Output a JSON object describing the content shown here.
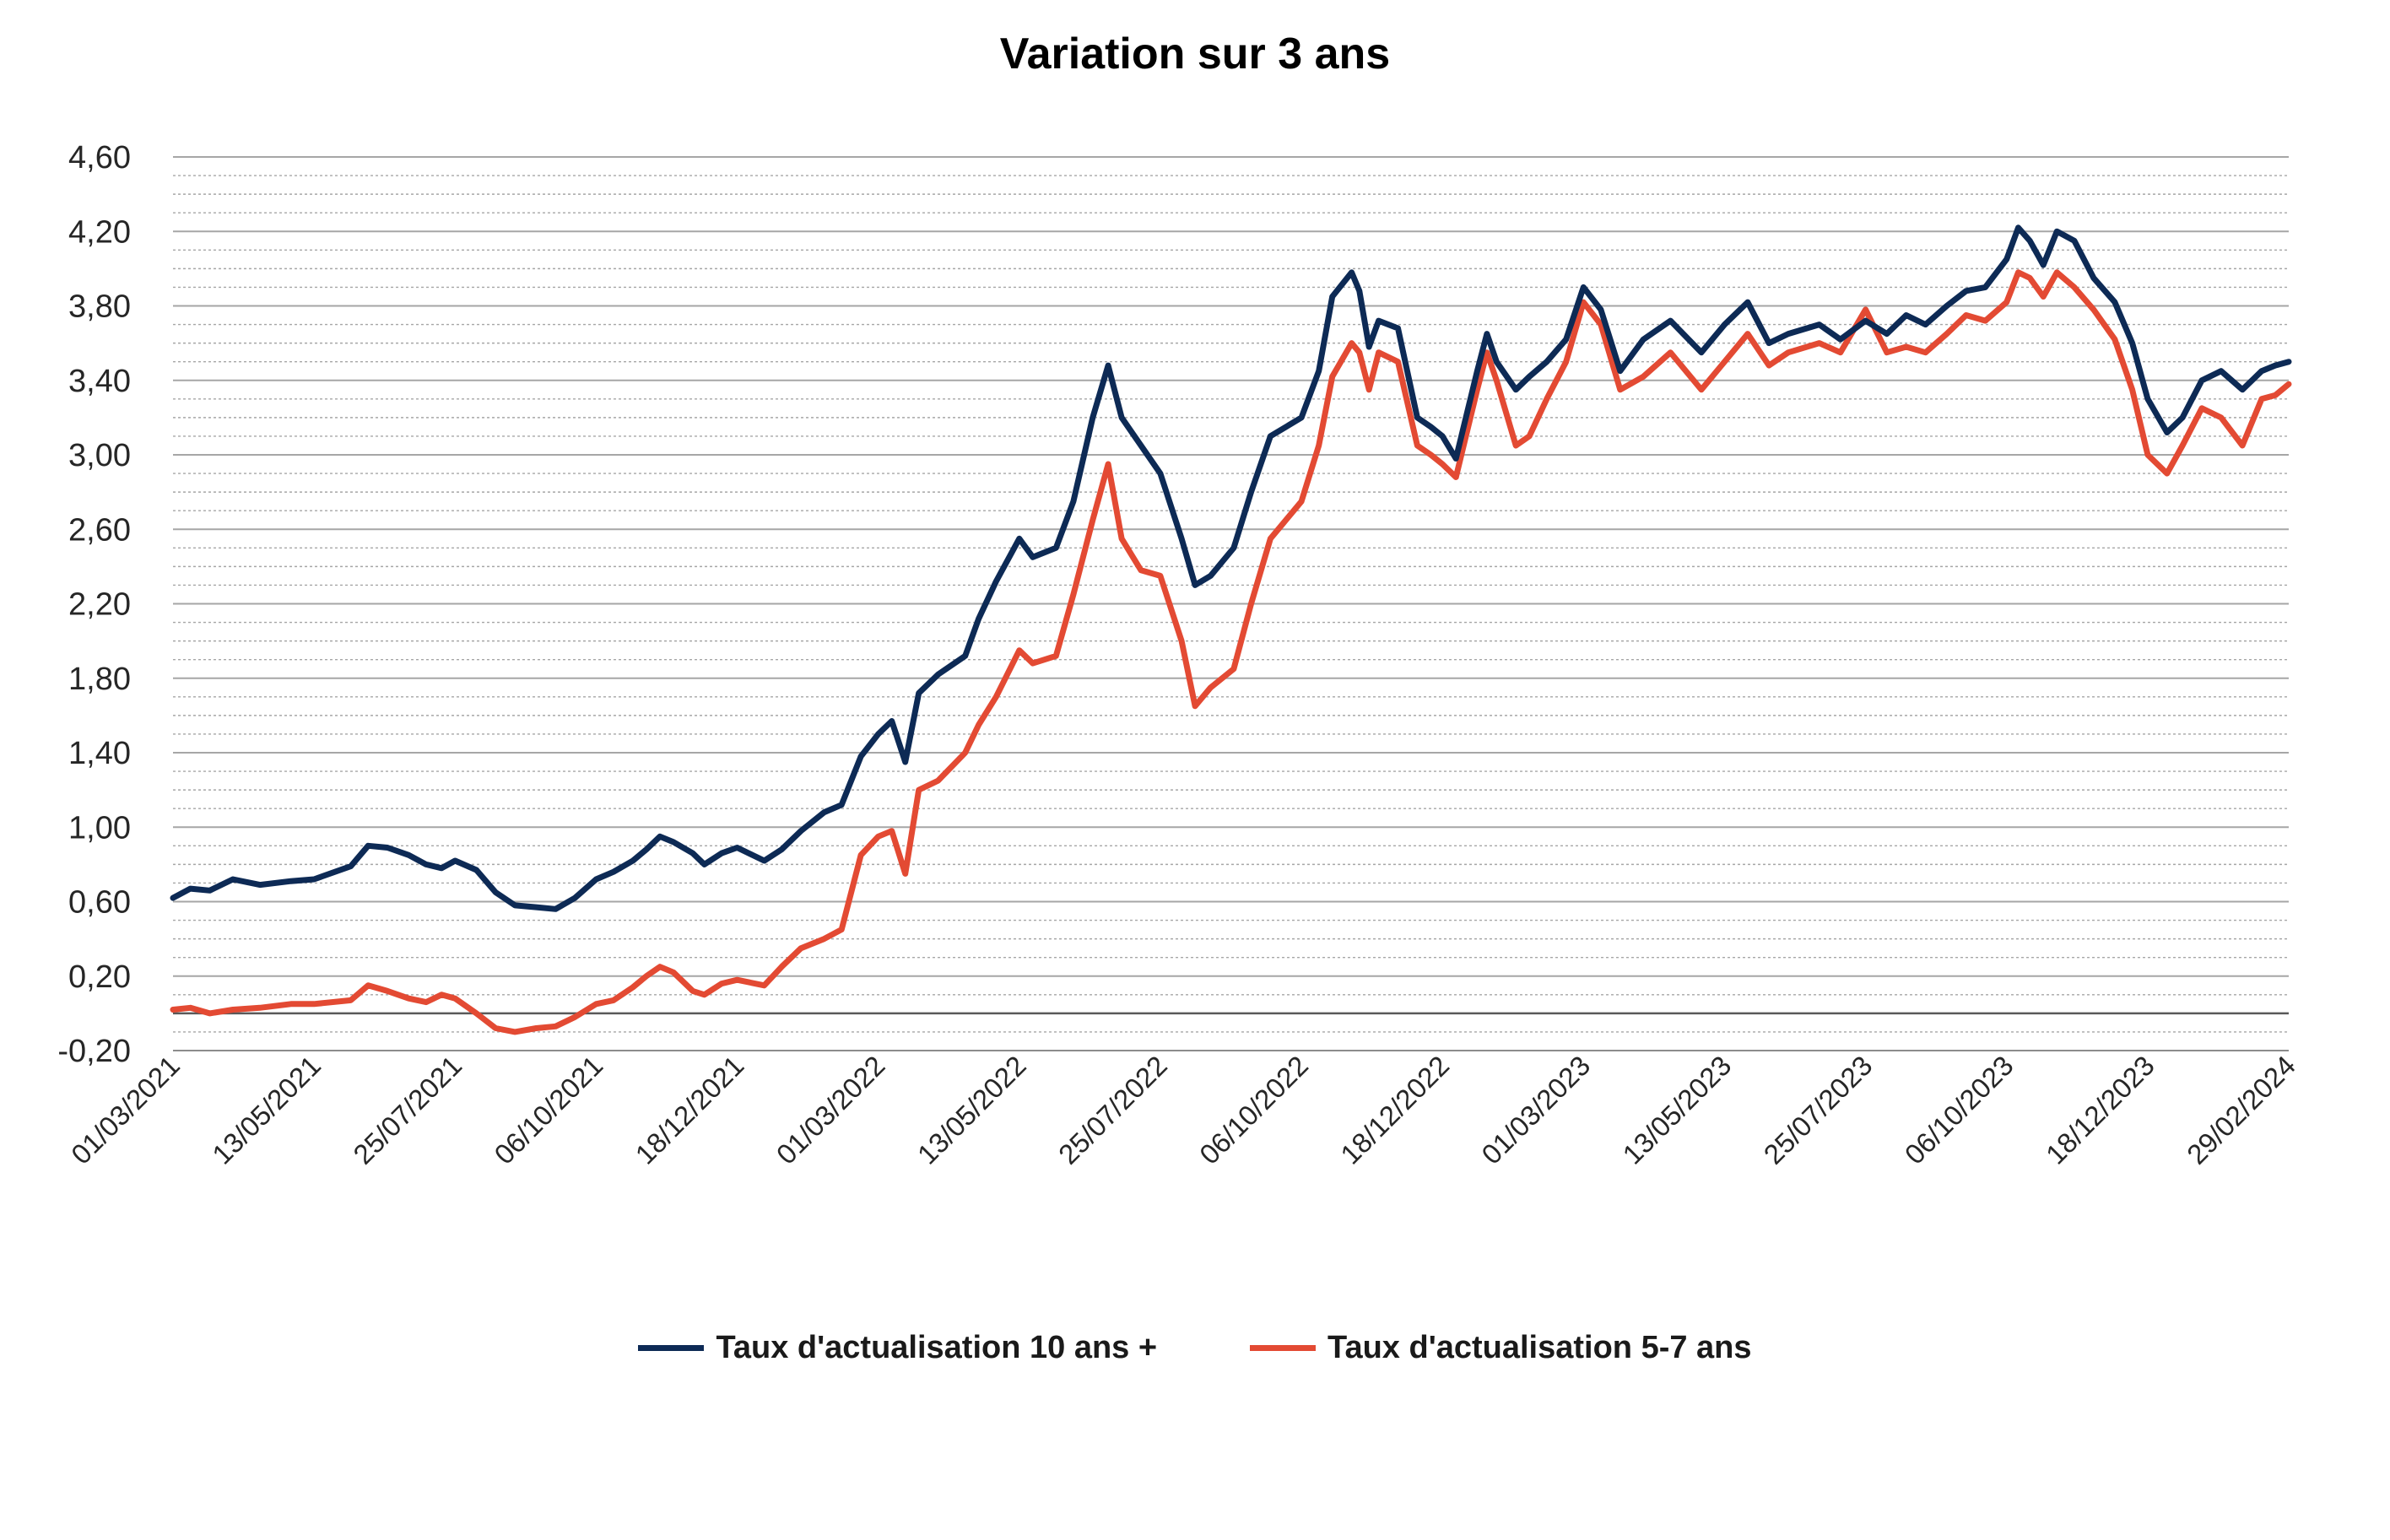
{
  "chart_data": {
    "type": "line",
    "title": "Variation sur 3 ans",
    "xlabel": "",
    "ylabel": "",
    "x_range": [
      "01/03/2021",
      "29/02/2024"
    ],
    "ylim": [
      -0.2,
      4.6
    ],
    "grid": true,
    "legend_position": "bottom",
    "y_ticks": [
      "4,60",
      "4,20",
      "3,80",
      "3,40",
      "3,00",
      "2,60",
      "2,20",
      "1,80",
      "1,40",
      "1,00",
      "0,60",
      "0,20",
      "-0,20"
    ],
    "x_ticks": [
      "01/03/2021",
      "13/05/2021",
      "25/07/2021",
      "06/10/2021",
      "18/12/2021",
      "01/03/2022",
      "13/05/2022",
      "25/07/2022",
      "06/10/2022",
      "18/12/2022",
      "01/03/2023",
      "13/05/2023",
      "25/07/2023",
      "06/10/2023",
      "18/12/2023",
      "29/02/2024"
    ],
    "series": [
      {
        "name": "Taux d'actualisation 10 ans +",
        "color": "#0d2a55",
        "points": [
          [
            "01/03/2021",
            0.62
          ],
          [
            "10/03/2021",
            0.67
          ],
          [
            "20/03/2021",
            0.66
          ],
          [
            "01/04/2021",
            0.72
          ],
          [
            "15/04/2021",
            0.69
          ],
          [
            "01/05/2021",
            0.71
          ],
          [
            "13/05/2021",
            0.72
          ],
          [
            "01/06/2021",
            0.79
          ],
          [
            "10/06/2021",
            0.9
          ],
          [
            "20/06/2021",
            0.89
          ],
          [
            "01/07/2021",
            0.85
          ],
          [
            "10/07/2021",
            0.8
          ],
          [
            "18/07/2021",
            0.78
          ],
          [
            "25/07/2021",
            0.82
          ],
          [
            "05/08/2021",
            0.77
          ],
          [
            "15/08/2021",
            0.65
          ],
          [
            "25/08/2021",
            0.58
          ],
          [
            "05/09/2021",
            0.57
          ],
          [
            "15/09/2021",
            0.56
          ],
          [
            "25/09/2021",
            0.62
          ],
          [
            "06/10/2021",
            0.72
          ],
          [
            "15/10/2021",
            0.76
          ],
          [
            "25/10/2021",
            0.82
          ],
          [
            "01/11/2021",
            0.88
          ],
          [
            "08/11/2021",
            0.95
          ],
          [
            "15/11/2021",
            0.92
          ],
          [
            "25/11/2021",
            0.86
          ],
          [
            "01/12/2021",
            0.8
          ],
          [
            "10/12/2021",
            0.86
          ],
          [
            "18/12/2021",
            0.89
          ],
          [
            "01/01/2022",
            0.82
          ],
          [
            "10/01/2022",
            0.88
          ],
          [
            "20/01/2022",
            0.98
          ],
          [
            "01/02/2022",
            1.08
          ],
          [
            "10/02/2022",
            1.12
          ],
          [
            "20/02/2022",
            1.38
          ],
          [
            "01/03/2022",
            1.5
          ],
          [
            "08/03/2022",
            1.57
          ],
          [
            "15/03/2022",
            1.35
          ],
          [
            "22/03/2022",
            1.72
          ],
          [
            "01/04/2022",
            1.82
          ],
          [
            "15/04/2022",
            1.92
          ],
          [
            "22/04/2022",
            2.12
          ],
          [
            "01/05/2022",
            2.32
          ],
          [
            "13/05/2022",
            2.55
          ],
          [
            "20/05/2022",
            2.45
          ],
          [
            "01/06/2022",
            2.5
          ],
          [
            "10/06/2022",
            2.75
          ],
          [
            "20/06/2022",
            3.2
          ],
          [
            "28/06/2022",
            3.48
          ],
          [
            "05/07/2022",
            3.2
          ],
          [
            "15/07/2022",
            3.05
          ],
          [
            "25/07/2022",
            2.9
          ],
          [
            "05/08/2022",
            2.55
          ],
          [
            "12/08/2022",
            2.3
          ],
          [
            "20/08/2022",
            2.35
          ],
          [
            "01/09/2022",
            2.5
          ],
          [
            "10/09/2022",
            2.8
          ],
          [
            "20/09/2022",
            3.1
          ],
          [
            "06/10/2022",
            3.2
          ],
          [
            "15/10/2022",
            3.45
          ],
          [
            "22/10/2022",
            3.85
          ],
          [
            "01/11/2022",
            3.98
          ],
          [
            "05/11/2022",
            3.88
          ],
          [
            "10/11/2022",
            3.58
          ],
          [
            "15/11/2022",
            3.72
          ],
          [
            "25/11/2022",
            3.68
          ],
          [
            "05/12/2022",
            3.2
          ],
          [
            "12/12/2022",
            3.15
          ],
          [
            "18/12/2022",
            3.1
          ],
          [
            "25/12/2022",
            2.98
          ],
          [
            "05/01/2023",
            3.45
          ],
          [
            "10/01/2023",
            3.65
          ],
          [
            "15/01/2023",
            3.5
          ],
          [
            "25/01/2023",
            3.35
          ],
          [
            "01/02/2023",
            3.42
          ],
          [
            "10/02/2023",
            3.5
          ],
          [
            "20/02/2023",
            3.62
          ],
          [
            "01/03/2023",
            3.9
          ],
          [
            "10/03/2023",
            3.78
          ],
          [
            "20/03/2023",
            3.45
          ],
          [
            "01/04/2023",
            3.62
          ],
          [
            "15/04/2023",
            3.72
          ],
          [
            "01/05/2023",
            3.55
          ],
          [
            "13/05/2023",
            3.7
          ],
          [
            "25/05/2023",
            3.82
          ],
          [
            "05/06/2023",
            3.6
          ],
          [
            "15/06/2023",
            3.65
          ],
          [
            "01/07/2023",
            3.7
          ],
          [
            "12/07/2023",
            3.62
          ],
          [
            "25/07/2023",
            3.72
          ],
          [
            "05/08/2023",
            3.65
          ],
          [
            "15/08/2023",
            3.75
          ],
          [
            "25/08/2023",
            3.7
          ],
          [
            "05/09/2023",
            3.8
          ],
          [
            "15/09/2023",
            3.88
          ],
          [
            "25/09/2023",
            3.9
          ],
          [
            "06/10/2023",
            4.05
          ],
          [
            "12/10/2023",
            4.22
          ],
          [
            "18/10/2023",
            4.15
          ],
          [
            "25/10/2023",
            4.02
          ],
          [
            "01/11/2023",
            4.2
          ],
          [
            "10/11/2023",
            4.15
          ],
          [
            "20/11/2023",
            3.95
          ],
          [
            "01/12/2023",
            3.82
          ],
          [
            "10/12/2023",
            3.6
          ],
          [
            "18/12/2023",
            3.3
          ],
          [
            "28/12/2023",
            3.12
          ],
          [
            "05/01/2024",
            3.2
          ],
          [
            "15/01/2024",
            3.4
          ],
          [
            "25/01/2024",
            3.45
          ],
          [
            "05/02/2024",
            3.35
          ],
          [
            "15/02/2024",
            3.45
          ],
          [
            "22/02/2024",
            3.48
          ],
          [
            "29/02/2024",
            3.5
          ]
        ]
      },
      {
        "name": "Taux d'actualisation 5-7 ans",
        "color": "#e34a33",
        "points": [
          [
            "01/03/2021",
            0.02
          ],
          [
            "10/03/2021",
            0.03
          ],
          [
            "20/03/2021",
            0.0
          ],
          [
            "01/04/2021",
            0.02
          ],
          [
            "15/04/2021",
            0.03
          ],
          [
            "01/05/2021",
            0.05
          ],
          [
            "13/05/2021",
            0.05
          ],
          [
            "01/06/2021",
            0.07
          ],
          [
            "10/06/2021",
            0.15
          ],
          [
            "20/06/2021",
            0.12
          ],
          [
            "01/07/2021",
            0.08
          ],
          [
            "10/07/2021",
            0.06
          ],
          [
            "18/07/2021",
            0.1
          ],
          [
            "25/07/2021",
            0.08
          ],
          [
            "05/08/2021",
            0.0
          ],
          [
            "15/08/2021",
            -0.08
          ],
          [
            "25/08/2021",
            -0.1
          ],
          [
            "05/09/2021",
            -0.08
          ],
          [
            "15/09/2021",
            -0.07
          ],
          [
            "25/09/2021",
            -0.02
          ],
          [
            "06/10/2021",
            0.05
          ],
          [
            "15/10/2021",
            0.07
          ],
          [
            "25/10/2021",
            0.14
          ],
          [
            "01/11/2021",
            0.2
          ],
          [
            "08/11/2021",
            0.25
          ],
          [
            "15/11/2021",
            0.22
          ],
          [
            "25/11/2021",
            0.12
          ],
          [
            "01/12/2021",
            0.1
          ],
          [
            "10/12/2021",
            0.16
          ],
          [
            "18/12/2021",
            0.18
          ],
          [
            "01/01/2022",
            0.15
          ],
          [
            "10/01/2022",
            0.25
          ],
          [
            "20/01/2022",
            0.35
          ],
          [
            "01/02/2022",
            0.4
          ],
          [
            "10/02/2022",
            0.45
          ],
          [
            "20/02/2022",
            0.85
          ],
          [
            "01/03/2022",
            0.95
          ],
          [
            "08/03/2022",
            0.98
          ],
          [
            "15/03/2022",
            0.75
          ],
          [
            "22/03/2022",
            1.2
          ],
          [
            "01/04/2022",
            1.25
          ],
          [
            "15/04/2022",
            1.4
          ],
          [
            "22/04/2022",
            1.55
          ],
          [
            "01/05/2022",
            1.7
          ],
          [
            "13/05/2022",
            1.95
          ],
          [
            "20/05/2022",
            1.88
          ],
          [
            "01/06/2022",
            1.92
          ],
          [
            "10/06/2022",
            2.25
          ],
          [
            "20/06/2022",
            2.65
          ],
          [
            "28/06/2022",
            2.95
          ],
          [
            "05/07/2022",
            2.55
          ],
          [
            "15/07/2022",
            2.38
          ],
          [
            "25/07/2022",
            2.35
          ],
          [
            "05/08/2022",
            2.0
          ],
          [
            "12/08/2022",
            1.65
          ],
          [
            "20/08/2022",
            1.75
          ],
          [
            "01/09/2022",
            1.85
          ],
          [
            "10/09/2022",
            2.2
          ],
          [
            "20/09/2022",
            2.55
          ],
          [
            "06/10/2022",
            2.75
          ],
          [
            "15/10/2022",
            3.05
          ],
          [
            "22/10/2022",
            3.42
          ],
          [
            "01/11/2022",
            3.6
          ],
          [
            "05/11/2022",
            3.55
          ],
          [
            "10/11/2022",
            3.35
          ],
          [
            "15/11/2022",
            3.55
          ],
          [
            "25/11/2022",
            3.5
          ],
          [
            "05/12/2022",
            3.05
          ],
          [
            "12/12/2022",
            3.0
          ],
          [
            "18/12/2022",
            2.95
          ],
          [
            "25/12/2022",
            2.88
          ],
          [
            "05/01/2023",
            3.35
          ],
          [
            "10/01/2023",
            3.55
          ],
          [
            "15/01/2023",
            3.4
          ],
          [
            "25/01/2023",
            3.05
          ],
          [
            "01/02/2023",
            3.1
          ],
          [
            "10/02/2023",
            3.3
          ],
          [
            "20/02/2023",
            3.5
          ],
          [
            "01/03/2023",
            3.82
          ],
          [
            "10/03/2023",
            3.7
          ],
          [
            "20/03/2023",
            3.35
          ],
          [
            "01/04/2023",
            3.42
          ],
          [
            "15/04/2023",
            3.55
          ],
          [
            "01/05/2023",
            3.35
          ],
          [
            "13/05/2023",
            3.5
          ],
          [
            "25/05/2023",
            3.65
          ],
          [
            "05/06/2023",
            3.48
          ],
          [
            "15/06/2023",
            3.55
          ],
          [
            "01/07/2023",
            3.6
          ],
          [
            "12/07/2023",
            3.55
          ],
          [
            "25/07/2023",
            3.78
          ],
          [
            "05/08/2023",
            3.55
          ],
          [
            "15/08/2023",
            3.58
          ],
          [
            "25/08/2023",
            3.55
          ],
          [
            "05/09/2023",
            3.65
          ],
          [
            "15/09/2023",
            3.75
          ],
          [
            "25/09/2023",
            3.72
          ],
          [
            "06/10/2023",
            3.82
          ],
          [
            "12/10/2023",
            3.98
          ],
          [
            "18/10/2023",
            3.95
          ],
          [
            "25/10/2023",
            3.85
          ],
          [
            "01/11/2023",
            3.98
          ],
          [
            "10/11/2023",
            3.9
          ],
          [
            "20/11/2023",
            3.78
          ],
          [
            "01/12/2023",
            3.62
          ],
          [
            "10/12/2023",
            3.35
          ],
          [
            "18/12/2023",
            3.0
          ],
          [
            "28/12/2023",
            2.9
          ],
          [
            "05/01/2024",
            3.05
          ],
          [
            "15/01/2024",
            3.25
          ],
          [
            "25/01/2024",
            3.2
          ],
          [
            "05/02/2024",
            3.05
          ],
          [
            "15/02/2024",
            3.3
          ],
          [
            "22/02/2024",
            3.32
          ],
          [
            "29/02/2024",
            3.38
          ]
        ]
      }
    ]
  }
}
